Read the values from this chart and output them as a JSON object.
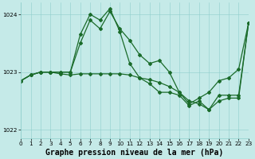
{
  "background_color": "#c5eae8",
  "grid_color": "#8ecfcc",
  "line_color": "#1a6b2a",
  "title": "Graphe pression niveau de la mer (hPa)",
  "xlim": [
    0,
    23
  ],
  "ylim": [
    1021.85,
    1024.2
  ],
  "yticks": [
    1022,
    1023,
    1024
  ],
  "xticks": [
    0,
    1,
    2,
    3,
    4,
    5,
    6,
    7,
    8,
    9,
    10,
    11,
    12,
    13,
    14,
    15,
    16,
    17,
    18,
    19,
    20,
    21,
    22,
    23
  ],
  "series": [
    {
      "x": [
        0,
        1,
        2,
        3,
        4,
        5,
        6,
        7,
        8,
        9,
        10,
        11,
        12,
        13,
        14,
        15,
        16,
        17,
        18,
        19,
        20,
        21,
        22,
        23
      ],
      "y": [
        1022.85,
        1022.95,
        1023.0,
        1023.0,
        1023.0,
        1023.0,
        1023.5,
        1023.9,
        1023.75,
        1024.05,
        1023.75,
        1023.55,
        1023.3,
        1023.15,
        1023.2,
        1023.0,
        1022.65,
        1022.45,
        1022.55,
        1022.65,
        1022.85,
        1022.9,
        1023.05,
        1023.85
      ]
    },
    {
      "x": [
        0,
        1,
        2,
        3,
        4,
        5,
        6,
        7,
        8,
        9,
        10,
        11,
        12,
        13,
        14,
        15,
        16,
        17,
        18,
        19,
        20,
        21,
        22,
        23
      ],
      "y": [
        1022.85,
        1022.95,
        1023.0,
        1023.0,
        1023.0,
        1023.0,
        1023.65,
        1024.0,
        1023.9,
        1024.1,
        1023.7,
        1023.15,
        1022.9,
        1022.8,
        1022.65,
        1022.65,
        1022.6,
        1022.42,
        1022.5,
        1022.35,
        1022.6,
        1022.6,
        1022.6,
        1023.85
      ]
    },
    {
      "x": [
        0,
        1,
        2,
        3,
        4,
        5,
        6,
        7,
        8,
        9,
        10,
        11,
        12,
        13,
        14,
        15,
        16,
        17,
        18,
        19,
        20,
        21,
        22,
        23
      ],
      "y": [
        1022.85,
        1022.95,
        1023.0,
        1023.0,
        1022.97,
        1022.95,
        1022.97,
        1022.97,
        1022.97,
        1022.97,
        1022.97,
        1022.95,
        1022.9,
        1022.87,
        1022.82,
        1022.75,
        1022.65,
        1022.5,
        1022.45,
        1022.35,
        1022.5,
        1022.55,
        1022.55,
        1023.85
      ]
    }
  ],
  "marker": "D",
  "markersize": 2.0,
  "linewidth": 0.9,
  "title_fontsize": 7.0,
  "tick_fontsize": 5.2
}
